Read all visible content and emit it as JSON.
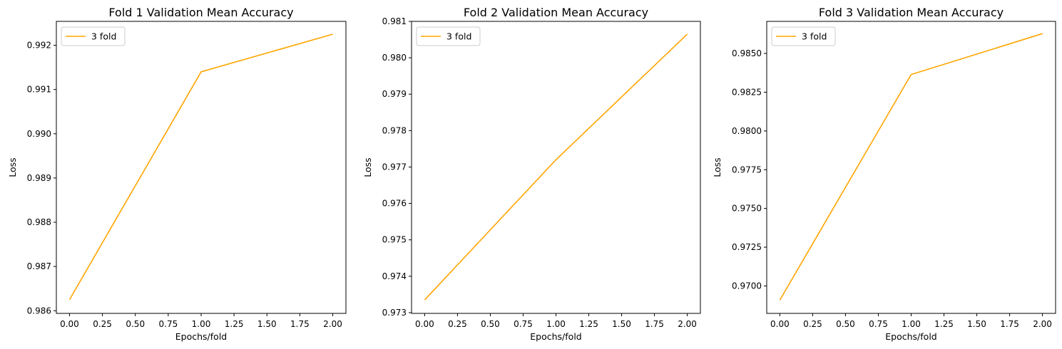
{
  "chart_data": [
    {
      "type": "line",
      "title": "Fold 1 Validation Mean Accuracy",
      "xlabel": "Epochs/fold",
      "ylabel": "Loss",
      "xlim": [
        -0.1,
        2.1
      ],
      "ylim": [
        0.98594,
        0.99254
      ],
      "x_ticks": [
        "0.00",
        "0.25",
        "0.50",
        "0.75",
        "1.00",
        "1.25",
        "1.50",
        "1.75",
        "2.00"
      ],
      "y_ticks": [
        "0.986",
        "0.987",
        "0.988",
        "0.989",
        "0.990",
        "0.991",
        "0.992"
      ],
      "legend": "upper-left",
      "grid": false,
      "series": [
        {
          "name": "3 fold",
          "color": "#ffa500",
          "x": [
            0,
            1,
            2
          ],
          "y": [
            0.98625,
            0.9914,
            0.99225
          ]
        }
      ]
    },
    {
      "type": "line",
      "title": "Fold 2 Validation Mean Accuracy",
      "xlabel": "Epochs/fold",
      "ylabel": "Loss",
      "xlim": [
        -0.1,
        2.1
      ],
      "ylim": [
        0.97298,
        0.981
      ],
      "x_ticks": [
        "0.00",
        "0.25",
        "0.50",
        "0.75",
        "1.00",
        "1.25",
        "1.50",
        "1.75",
        "2.00"
      ],
      "y_ticks": [
        "0.973",
        "0.974",
        "0.975",
        "0.976",
        "0.977",
        "0.978",
        "0.979",
        "0.980",
        "0.981"
      ],
      "legend": "upper-left",
      "grid": false,
      "series": [
        {
          "name": "3 fold",
          "color": "#ffa500",
          "x": [
            0,
            1,
            2
          ],
          "y": [
            0.97335,
            0.9772,
            0.98065
          ]
        }
      ]
    },
    {
      "type": "line",
      "title": "Fold 3 Validation Mean Accuracy",
      "xlabel": "Epochs/fold",
      "ylabel": "Loss",
      "xlim": [
        -0.1,
        2.1
      ],
      "ylim": [
        0.96823,
        0.98707
      ],
      "x_ticks": [
        "0.00",
        "0.25",
        "0.50",
        "0.75",
        "1.00",
        "1.25",
        "1.50",
        "1.75",
        "2.00"
      ],
      "y_ticks": [
        "0.9700",
        "0.9725",
        "0.9750",
        "0.9775",
        "0.9800",
        "0.9825",
        "0.9850"
      ],
      "legend": "upper-left",
      "grid": false,
      "series": [
        {
          "name": "3 fold",
          "color": "#ffa500",
          "x": [
            0,
            1,
            2
          ],
          "y": [
            0.96909,
            0.98364,
            0.98628
          ]
        }
      ]
    }
  ]
}
